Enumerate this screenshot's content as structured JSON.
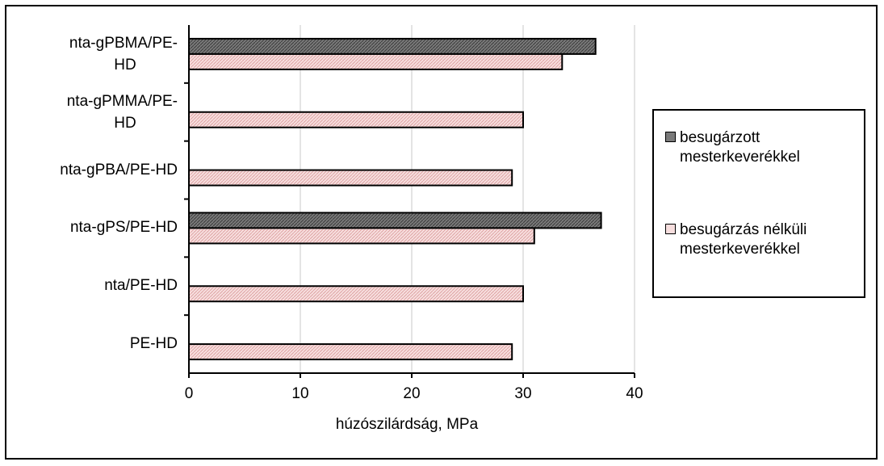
{
  "chart_data": {
    "type": "bar",
    "orientation": "horizontal",
    "categories": [
      "nta-gPBMA/PE-HD",
      "nta-gPMMA/PE-HD",
      "nta-gPBA/PE-HD",
      "nta-gPS/PE-HD",
      "nta/PE-HD",
      "PE-HD"
    ],
    "series": [
      {
        "name": "besugárzott mesterkeverékkel",
        "values": [
          36.5,
          null,
          null,
          37,
          null,
          null
        ],
        "color": "#808080"
      },
      {
        "name": "besugárzás nélküli mesterkeverékkel",
        "values": [
          33.5,
          30,
          29,
          31,
          30,
          29
        ],
        "color": "#f2c6c6"
      }
    ],
    "xlabel": "húzószilárdság, MPa",
    "ylabel": "",
    "xlim": [
      0,
      40
    ],
    "xticks": [
      "0",
      "10",
      "20",
      "30",
      "40"
    ],
    "grid": true,
    "legend_position": "right"
  }
}
